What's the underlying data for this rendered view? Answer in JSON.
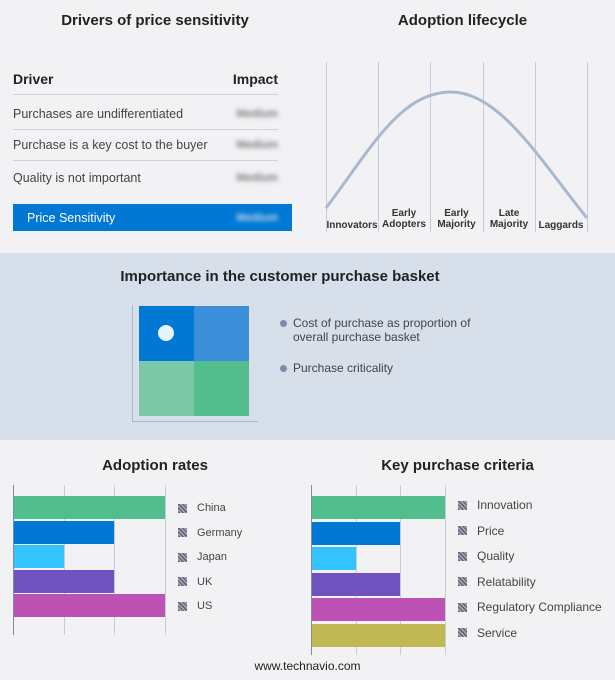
{
  "drivers": {
    "title": "Drivers of price sensitivity",
    "col_driver": "Driver",
    "col_impact": "Impact",
    "rows": [
      {
        "driver": "Purchases are undifferentiated",
        "impact": "Medium"
      },
      {
        "driver": "Purchase is a key cost to the buyer",
        "impact": "Medium"
      },
      {
        "driver": "Quality is not important",
        "impact": "Medium"
      }
    ],
    "summary": {
      "label": "Price Sensitivity",
      "impact": "Medium"
    },
    "accent": "#0078d4"
  },
  "lifecycle": {
    "title": "Adoption lifecycle",
    "stages": [
      [
        "Innovators"
      ],
      [
        "Early",
        "Adopters"
      ],
      [
        "Early",
        "Majority"
      ],
      [
        "Late",
        "Majority"
      ],
      [
        "Laggards"
      ]
    ],
    "curve_color": "#a9b8cc"
  },
  "basket": {
    "title": "Importance in the customer purchase basket",
    "legend": [
      "Cost of purchase as proportion of overall purchase basket",
      "Purchase criticality"
    ],
    "quadrant_colors": [
      "#0078d4",
      "#3a8fd8",
      "#7ac8a8",
      "#52be8e"
    ],
    "marker_quadrant": "top-left"
  },
  "chart_data": [
    {
      "type": "bar",
      "orientation": "horizontal",
      "title": "Adoption rates",
      "categories": [
        "China",
        "Germany",
        "Japan",
        "UK",
        "US"
      ],
      "values": [
        3,
        2,
        1,
        2,
        3
      ],
      "xlim": [
        0,
        3
      ],
      "grid": true,
      "colors": [
        "#52be8e",
        "#0078d4",
        "#33c3ff",
        "#7052be",
        "#be52b4"
      ],
      "legend": "right"
    },
    {
      "type": "bar",
      "orientation": "horizontal",
      "title": "Key purchase criteria",
      "categories": [
        "Innovation",
        "Price",
        "Quality",
        "Relatability",
        "Regulatory Compliance",
        "Service"
      ],
      "values": [
        3,
        2,
        1,
        2,
        3,
        3
      ],
      "xlim": [
        0,
        3
      ],
      "grid": true,
      "colors": [
        "#52be8e",
        "#0078d4",
        "#33c3ff",
        "#7052be",
        "#be52b4",
        "#c0b852"
      ],
      "legend": "right"
    }
  ],
  "footer": "www.technavio.com"
}
